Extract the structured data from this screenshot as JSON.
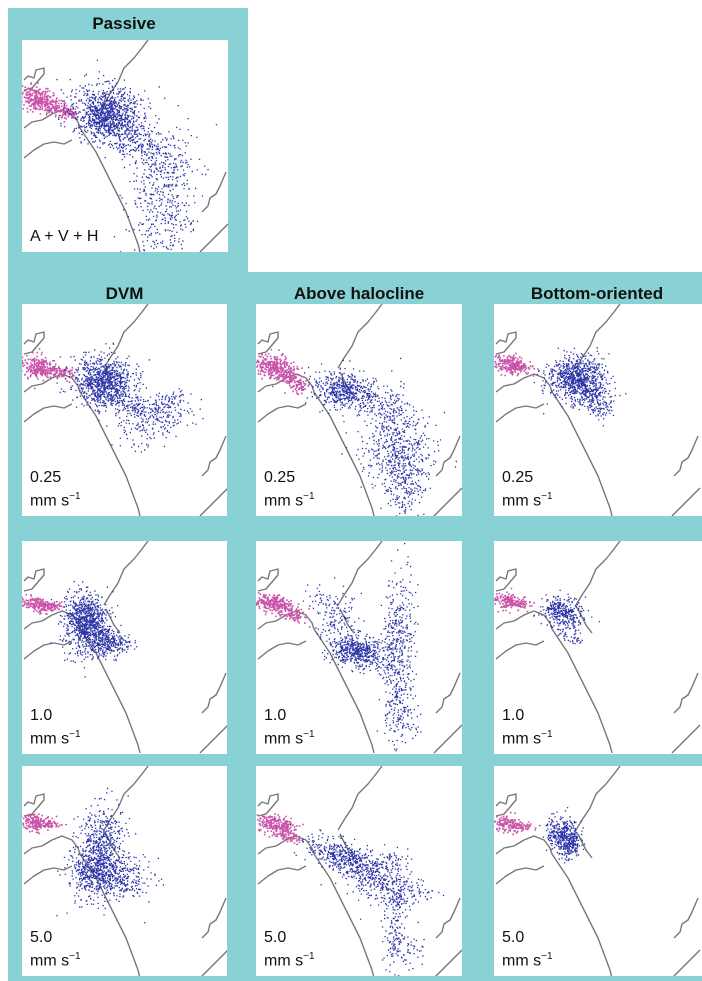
{
  "top_title": "Passive",
  "passive_label": "A + V + H",
  "column_titles": [
    "DVM",
    "Above halocline",
    "Bottom-oriented"
  ],
  "speed_values": [
    "0.25",
    "1.0",
    "5.0"
  ],
  "unit_base": "mm s",
  "unit_exp": "−1",
  "colors": {
    "frame": "#88d1d4",
    "particles": "#2b33a6",
    "source": "#c953a8",
    "coast": "#777777"
  }
}
